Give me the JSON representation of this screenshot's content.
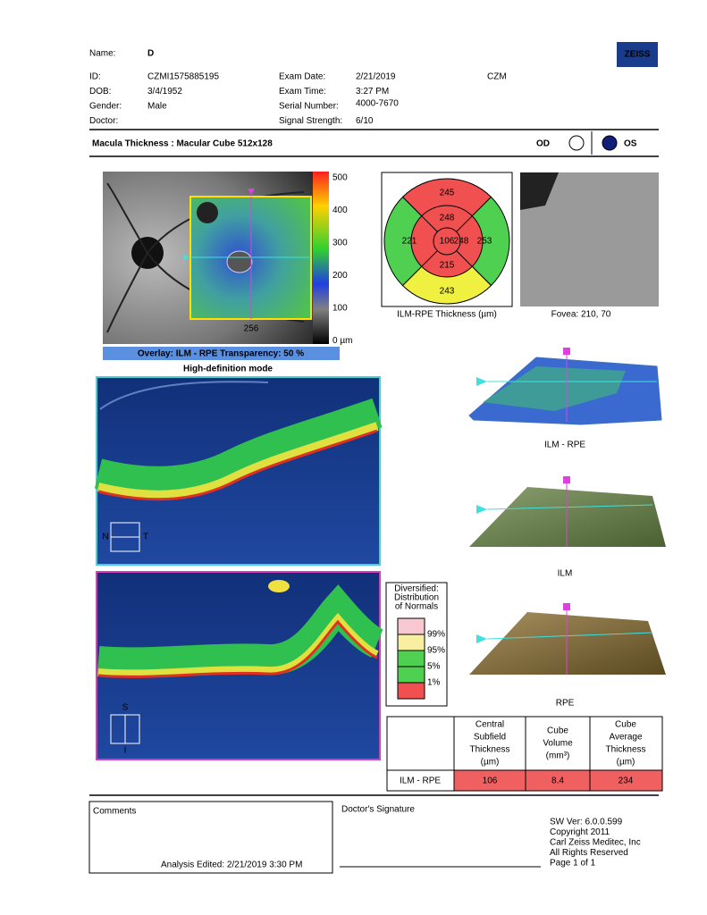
{
  "header": {
    "logo": "ZEISS",
    "name": {
      "label": "Name:",
      "value": "D"
    },
    "fields": [
      {
        "label": "ID:",
        "value": "CZMI1575885195"
      },
      {
        "label": "DOB:",
        "value": "3/4/1952"
      },
      {
        "label": "Gender:",
        "value": "Male"
      },
      {
        "label": "Doctor:"
      }
    ],
    "exam_fields": [
      {
        "label": "Exam Date:",
        "value": "2/21/2019"
      },
      {
        "label": "Exam Time:",
        "value": "3:27 PM"
      },
      {
        "label": "Serial Number:",
        "value": "4000-7670"
      },
      {
        "label": "Signal Strength:",
        "value": "6/10"
      }
    ],
    "site": "CZM"
  },
  "title": {
    "text": "Macula Thickness : Macular Cube 512x128",
    "od": "OD",
    "os": "OS"
  },
  "overlay": {
    "scale": [
      500,
      400,
      300,
      200,
      100,
      "0 µm"
    ],
    "position": 256,
    "caption": "Overlay: ILM - RPE  Transparency: 50 %"
  },
  "mode": "High-definition mode",
  "bscans": [
    {
      "orientation": [
        "N",
        "T"
      ]
    },
    {
      "orientation": [
        "S",
        "I"
      ]
    }
  ],
  "thickness_map": {
    "outer_superior": 245,
    "inner_superior": 248,
    "outer_nasal": 221,
    "center": 106,
    "inner_temporal": 248,
    "outer_temporal": 253,
    "inner_inferior": 215,
    "outer_inferior": 243,
    "caption": "ILM-RPE Thickness (µm)"
  },
  "fovea": "Fovea: 210, 70",
  "surfaces": [
    "ILM - RPE",
    "ILM",
    "RPE"
  ],
  "normals_legend": {
    "title": [
      "Diversified:",
      "Distribution",
      "of Normals"
    ],
    "levels": [
      "99%",
      "95%",
      "5%",
      "1%"
    ]
  },
  "table": {
    "headers": [
      [
        "Central",
        "Subfield",
        "Thickness",
        "(µm)"
      ],
      [
        "Cube",
        "Volume",
        "(mm³)"
      ],
      [
        "Cube",
        "Average",
        "Thickness",
        "(µm)"
      ]
    ],
    "rows": [
      {
        "label": "ILM - RPE",
        "values": [
          106,
          8.4,
          234
        ]
      }
    ]
  },
  "footer": {
    "comments": "Comments",
    "analysis_edited": "Analysis Edited:  2/21/2019 3:30 PM",
    "signature": "Doctor's Signature",
    "software": [
      "SW Ver: 6.0.0.599",
      "Copyright 2011",
      "Carl Zeiss Meditec, Inc",
      "All Rights Reserved",
      "Page 1 of 1"
    ]
  }
}
